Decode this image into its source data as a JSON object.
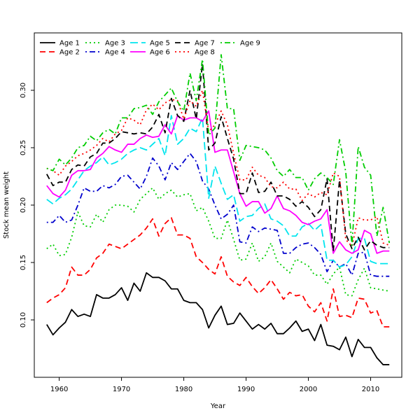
{
  "chart_data": {
    "type": "line",
    "title": "",
    "xlabel": "Year",
    "ylabel": "Stock mean weight",
    "xlim": [
      1956,
      2015
    ],
    "ylim": [
      0.05,
      0.35
    ],
    "x_ticks": [
      1960,
      1970,
      1980,
      1990,
      2000,
      2010
    ],
    "y_ticks": [
      0.1,
      0.15,
      0.2,
      0.25,
      0.3
    ],
    "grid": false,
    "legend_position": "top-left",
    "x": [
      1958,
      1959,
      1960,
      1961,
      1962,
      1963,
      1964,
      1965,
      1966,
      1967,
      1968,
      1969,
      1970,
      1971,
      1972,
      1973,
      1974,
      1975,
      1976,
      1977,
      1978,
      1979,
      1980,
      1981,
      1982,
      1983,
      1984,
      1985,
      1986,
      1987,
      1988,
      1989,
      1990,
      1991,
      1992,
      1993,
      1994,
      1995,
      1996,
      1997,
      1998,
      1999,
      2000,
      2001,
      2002,
      2003,
      2004,
      2005,
      2006,
      2007,
      2008,
      2009,
      2010,
      2011,
      2012,
      2013
    ],
    "series": [
      {
        "name": "Age 1",
        "color": "#000000",
        "dash": "solid",
        "values": [
          0.096,
          0.087,
          0.093,
          0.098,
          0.109,
          0.103,
          0.105,
          0.103,
          0.122,
          0.119,
          0.119,
          0.122,
          0.128,
          0.117,
          0.132,
          0.125,
          0.141,
          0.137,
          0.137,
          0.134,
          0.127,
          0.127,
          0.117,
          0.115,
          0.115,
          0.109,
          0.093,
          0.104,
          0.112,
          0.096,
          0.097,
          0.106,
          0.099,
          0.092,
          0.096,
          0.092,
          0.097,
          0.088,
          0.088,
          0.093,
          0.099,
          0.09,
          0.092,
          0.082,
          0.096,
          0.078,
          0.077,
          0.074,
          0.085,
          0.068,
          0.083,
          0.076,
          0.076,
          0.067,
          0.061,
          0.061
        ]
      },
      {
        "name": "Age 2",
        "color": "#ff0000",
        "dash": "dashed",
        "values": [
          0.115,
          0.119,
          0.122,
          0.128,
          0.146,
          0.139,
          0.139,
          0.144,
          0.154,
          0.158,
          0.166,
          0.164,
          0.162,
          0.166,
          0.17,
          0.174,
          0.18,
          0.188,
          0.173,
          0.184,
          0.189,
          0.174,
          0.174,
          0.171,
          0.155,
          0.15,
          0.144,
          0.14,
          0.155,
          0.138,
          0.133,
          0.13,
          0.137,
          0.129,
          0.123,
          0.128,
          0.135,
          0.127,
          0.118,
          0.124,
          0.121,
          0.122,
          0.112,
          0.107,
          0.115,
          0.099,
          0.127,
          0.103,
          0.104,
          0.102,
          0.119,
          0.118,
          0.106,
          0.108,
          0.094,
          0.094
        ]
      },
      {
        "name": "Age 3",
        "color": "#00cd00",
        "dash": "dotted",
        "values": [
          0.162,
          0.166,
          0.156,
          0.157,
          0.172,
          0.194,
          0.182,
          0.181,
          0.192,
          0.185,
          0.196,
          0.2,
          0.2,
          0.199,
          0.194,
          0.205,
          0.21,
          0.215,
          0.205,
          0.21,
          0.213,
          0.207,
          0.209,
          0.21,
          0.195,
          0.198,
          0.186,
          0.171,
          0.171,
          0.187,
          0.17,
          0.152,
          0.153,
          0.167,
          0.151,
          0.155,
          0.167,
          0.151,
          0.146,
          0.141,
          0.153,
          0.15,
          0.147,
          0.139,
          0.139,
          0.131,
          0.14,
          0.146,
          0.122,
          0.121,
          0.135,
          0.145,
          0.128,
          0.127,
          0.126,
          0.125
        ]
      },
      {
        "name": "Age 4",
        "color": "#0000cd",
        "dash": "dashdot",
        "values": [
          0.185,
          0.185,
          0.191,
          0.185,
          0.187,
          0.2,
          0.215,
          0.212,
          0.212,
          0.217,
          0.215,
          0.218,
          0.225,
          0.226,
          0.22,
          0.214,
          0.225,
          0.241,
          0.234,
          0.222,
          0.237,
          0.231,
          0.238,
          0.245,
          0.238,
          0.221,
          0.214,
          0.2,
          0.188,
          0.192,
          0.2,
          0.168,
          0.167,
          0.181,
          0.177,
          0.18,
          0.179,
          0.178,
          0.158,
          0.158,
          0.163,
          0.166,
          0.167,
          0.163,
          0.157,
          0.142,
          0.152,
          0.146,
          0.149,
          0.139,
          0.158,
          0.159,
          0.139,
          0.138,
          0.138,
          0.138
        ]
      },
      {
        "name": "Age 5",
        "color": "#00e5ee",
        "dash": "longdash",
        "values": [
          0.205,
          0.201,
          0.206,
          0.209,
          0.214,
          0.222,
          0.23,
          0.234,
          0.237,
          0.242,
          0.235,
          0.237,
          0.24,
          0.245,
          0.248,
          0.25,
          0.248,
          0.253,
          0.258,
          0.243,
          0.278,
          0.253,
          0.258,
          0.267,
          0.264,
          0.276,
          0.206,
          0.234,
          0.219,
          0.205,
          0.209,
          0.186,
          0.19,
          0.191,
          0.197,
          0.201,
          0.188,
          0.186,
          0.182,
          0.173,
          0.173,
          0.181,
          0.184,
          0.178,
          0.183,
          0.152,
          0.152,
          0.146,
          0.148,
          0.155,
          0.171,
          0.171,
          0.151,
          0.149,
          0.149,
          0.149
        ]
      },
      {
        "name": "Age 6",
        "color": "#ff00ff",
        "dash": "solid",
        "values": [
          0.217,
          0.21,
          0.207,
          0.213,
          0.226,
          0.23,
          0.23,
          0.231,
          0.241,
          0.245,
          0.251,
          0.248,
          0.246,
          0.253,
          0.253,
          0.258,
          0.261,
          0.259,
          0.26,
          0.27,
          0.262,
          0.278,
          0.274,
          0.276,
          0.276,
          0.273,
          0.282,
          0.246,
          0.248,
          0.248,
          0.229,
          0.21,
          0.199,
          0.203,
          0.203,
          0.193,
          0.197,
          0.208,
          0.197,
          0.195,
          0.191,
          0.185,
          0.183,
          0.186,
          0.188,
          0.196,
          0.158,
          0.168,
          0.161,
          0.158,
          0.161,
          0.178,
          0.175,
          0.158,
          0.16,
          0.16
        ]
      },
      {
        "name": "Age 7",
        "color": "#000000",
        "dash": "dashed",
        "values": [
          0.227,
          0.217,
          0.22,
          0.22,
          0.231,
          0.235,
          0.234,
          0.242,
          0.245,
          0.254,
          0.254,
          0.258,
          0.264,
          0.263,
          0.262,
          0.263,
          0.262,
          0.268,
          0.279,
          0.263,
          0.293,
          0.278,
          0.273,
          0.3,
          0.275,
          0.323,
          0.248,
          0.254,
          0.277,
          0.258,
          0.24,
          0.21,
          0.21,
          0.228,
          0.211,
          0.212,
          0.22,
          0.208,
          0.208,
          0.205,
          0.199,
          0.203,
          0.198,
          0.19,
          0.196,
          0.223,
          0.16,
          0.222,
          0.175,
          0.162,
          0.172,
          0.161,
          0.169,
          0.165,
          0.163,
          0.163
        ]
      },
      {
        "name": "Age 8",
        "color": "#ff0000",
        "dash": "dotted",
        "values": [
          0.232,
          0.23,
          0.226,
          0.234,
          0.238,
          0.243,
          0.245,
          0.248,
          0.252,
          0.258,
          0.255,
          0.262,
          0.265,
          0.276,
          0.274,
          0.27,
          0.283,
          0.288,
          0.283,
          0.289,
          0.292,
          0.291,
          0.275,
          0.291,
          0.286,
          0.3,
          0.264,
          0.27,
          0.282,
          0.27,
          0.245,
          0.222,
          0.222,
          0.233,
          0.226,
          0.224,
          0.216,
          0.215,
          0.22,
          0.214,
          0.214,
          0.204,
          0.21,
          0.207,
          0.211,
          0.209,
          0.228,
          0.225,
          0.17,
          0.164,
          0.189,
          0.187,
          0.187,
          0.19,
          0.167,
          0.165
        ]
      },
      {
        "name": "Age 9",
        "color": "#00cd00",
        "dash": "dashdot",
        "values": [
          0.232,
          0.23,
          0.24,
          0.235,
          0.241,
          0.25,
          0.252,
          0.26,
          0.256,
          0.263,
          0.266,
          0.262,
          0.276,
          0.276,
          0.284,
          0.285,
          0.287,
          0.279,
          0.29,
          0.296,
          0.302,
          0.29,
          0.282,
          0.315,
          0.291,
          0.327,
          0.261,
          0.267,
          0.331,
          0.284,
          0.284,
          0.239,
          0.252,
          0.251,
          0.25,
          0.248,
          0.241,
          0.23,
          0.225,
          0.231,
          0.224,
          0.224,
          0.213,
          0.223,
          0.228,
          0.224,
          0.218,
          0.257,
          0.229,
          0.165,
          0.251,
          0.233,
          0.226,
          0.173,
          0.198,
          0.167
        ]
      }
    ]
  }
}
